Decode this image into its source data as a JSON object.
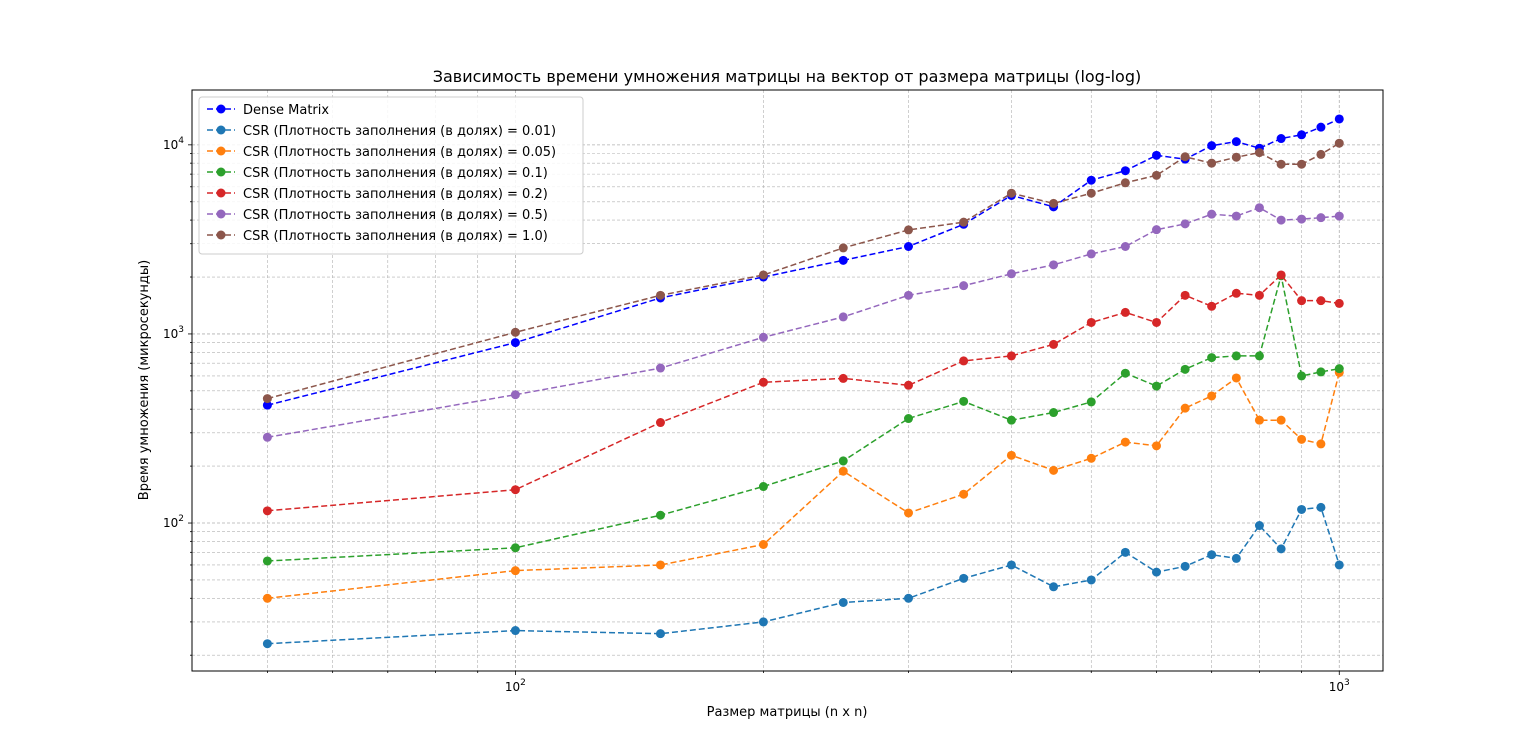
{
  "chart_data": {
    "type": "line",
    "title": "Зависимость времени умножения матрицы на вектор от размера матрицы (log-log)",
    "xlabel": "Размер матрицы (n x n)",
    "ylabel": "Время умножения (микросекунды)",
    "xscale": "log",
    "yscale": "log",
    "xlim": [
      40.5,
      1130
    ],
    "ylim": [
      16.5,
      19500
    ],
    "x_ticks": [
      {
        "value": 100,
        "base": "10",
        "exp": "2"
      },
      {
        "value": 1000,
        "base": "10",
        "exp": "3"
      }
    ],
    "y_ticks": [
      {
        "value": 100,
        "base": "10",
        "exp": "2"
      },
      {
        "value": 1000,
        "base": "10",
        "exp": "3"
      },
      {
        "value": 10000,
        "base": "10",
        "exp": "4"
      }
    ],
    "grid": true,
    "legend_position": "top-left",
    "x": [
      50,
      100,
      150,
      200,
      250,
      300,
      350,
      400,
      450,
      500,
      550,
      600,
      650,
      700,
      750,
      800,
      850,
      900,
      950,
      1000
    ],
    "series": [
      {
        "name": "Dense Matrix",
        "color": "#0000ff",
        "values": [
          420,
          900,
          1550,
          2000,
          2450,
          2900,
          3800,
          5400,
          4700,
          6500,
          7300,
          8800,
          8400,
          9900,
          10400,
          9600,
          10800,
          11300,
          12400,
          13700
        ]
      },
      {
        "name": "CSR (Плотность заполнения (в долях) = 0.01)",
        "color": "#1f77b4",
        "values": [
          23,
          27,
          26,
          30,
          38,
          40,
          51,
          60,
          46,
          50,
          70,
          55,
          59,
          68,
          65,
          97,
          73,
          118,
          121,
          60
        ]
      },
      {
        "name": "CSR (Плотность заполнения (в долях) = 0.05)",
        "color": "#ff7f0e",
        "values": [
          40,
          56,
          60,
          77,
          188,
          113,
          142,
          228,
          190,
          220,
          268,
          256,
          405,
          470,
          585,
          350,
          350,
          277,
          262,
          625
        ]
      },
      {
        "name": "CSR (Плотность заполнения (в долях) = 0.1)",
        "color": "#2ca02c",
        "values": [
          63,
          74,
          110,
          156,
          213,
          357,
          440,
          350,
          384,
          437,
          620,
          530,
          650,
          750,
          765,
          765,
          2030,
          600,
          630,
          655
        ]
      },
      {
        "name": "CSR (Плотность заполнения (в долях) = 0.2)",
        "color": "#d62728",
        "values": [
          116,
          150,
          340,
          555,
          582,
          535,
          720,
          765,
          880,
          1150,
          1300,
          1150,
          1600,
          1400,
          1640,
          1600,
          2050,
          1500,
          1500,
          1450
        ]
      },
      {
        "name": "CSR (Плотность заполнения (в долях) = 0.5)",
        "color": "#9467bd",
        "values": [
          284,
          477,
          660,
          960,
          1230,
          1600,
          1800,
          2080,
          2320,
          2650,
          2900,
          3560,
          3820,
          4300,
          4200,
          4650,
          4000,
          4050,
          4120,
          4200
        ]
      },
      {
        "name": "CSR (Плотность заполнения (в долях) = 1.0)",
        "color": "#8c564b",
        "values": [
          455,
          1020,
          1600,
          2050,
          2850,
          3550,
          3900,
          5550,
          4900,
          5550,
          6300,
          6900,
          8650,
          8000,
          8600,
          9100,
          7900,
          7900,
          8900,
          10200
        ]
      }
    ]
  }
}
